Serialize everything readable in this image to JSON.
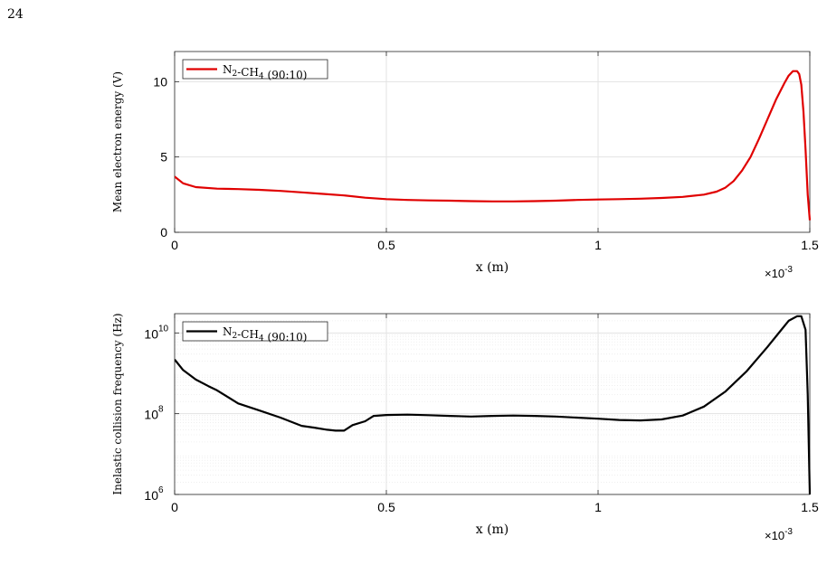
{
  "page_number": "24",
  "chart_data": [
    {
      "type": "line",
      "ylabel": "Mean electron energy (V)",
      "xlabel": "x (m)",
      "x_multiplier": "×10-3",
      "xlim": [
        0,
        1.5
      ],
      "ylim": [
        0,
        12
      ],
      "xticks": [
        0,
        0.5,
        1,
        1.5
      ],
      "xtick_labels": [
        "0",
        "0.5",
        "1",
        "1.5"
      ],
      "yticks": [
        0,
        5,
        10
      ],
      "ytick_labels": [
        "0",
        "5",
        "10"
      ],
      "yscale": "linear",
      "grid": true,
      "legend_position": "top-left",
      "series": [
        {
          "name": "N2-CH4 (90:10)",
          "color": "#e00000",
          "x": [
            0,
            0.02,
            0.05,
            0.1,
            0.15,
            0.2,
            0.25,
            0.3,
            0.35,
            0.4,
            0.45,
            0.5,
            0.55,
            0.6,
            0.65,
            0.7,
            0.75,
            0.8,
            0.85,
            0.9,
            0.95,
            1.0,
            1.05,
            1.1,
            1.15,
            1.2,
            1.25,
            1.28,
            1.3,
            1.32,
            1.34,
            1.36,
            1.38,
            1.4,
            1.42,
            1.44,
            1.45,
            1.46,
            1.47,
            1.475,
            1.48,
            1.485,
            1.49,
            1.495,
            1.5
          ],
          "y": [
            3.7,
            3.25,
            3.0,
            2.9,
            2.87,
            2.82,
            2.75,
            2.65,
            2.55,
            2.45,
            2.3,
            2.2,
            2.15,
            2.12,
            2.1,
            2.07,
            2.05,
            2.05,
            2.07,
            2.1,
            2.15,
            2.18,
            2.2,
            2.23,
            2.28,
            2.35,
            2.5,
            2.7,
            2.95,
            3.4,
            4.1,
            5.0,
            6.2,
            7.5,
            8.8,
            9.9,
            10.4,
            10.7,
            10.7,
            10.5,
            9.8,
            8.0,
            5.5,
            2.5,
            0.8
          ]
        }
      ]
    },
    {
      "type": "line",
      "ylabel": "Inelastic collision frequency (Hz)",
      "xlabel": "x (m)",
      "x_multiplier": "×10-3",
      "xlim": [
        0,
        1.5
      ],
      "ylim": [
        1000000,
        30000000000
      ],
      "xticks": [
        0,
        0.5,
        1,
        1.5
      ],
      "xtick_labels": [
        "0",
        "0.5",
        "1",
        "1.5"
      ],
      "yticks": [
        1000000,
        100000000,
        10000000000
      ],
      "ytick_labels": [
        "10",
        "10",
        "10"
      ],
      "ytick_exponents": [
        "6",
        "8",
        "10"
      ],
      "yscale": "log",
      "grid": true,
      "legend_position": "top-left",
      "series": [
        {
          "name": "N2-CH4 (90:10)",
          "color": "#000000",
          "x": [
            0,
            0.02,
            0.05,
            0.08,
            0.1,
            0.15,
            0.2,
            0.25,
            0.3,
            0.33,
            0.36,
            0.38,
            0.4,
            0.42,
            0.45,
            0.47,
            0.5,
            0.55,
            0.6,
            0.65,
            0.7,
            0.75,
            0.8,
            0.85,
            0.9,
            0.95,
            1.0,
            1.05,
            1.1,
            1.15,
            1.2,
            1.25,
            1.3,
            1.35,
            1.4,
            1.43,
            1.45,
            1.47,
            1.48,
            1.49,
            1.495,
            1.5
          ],
          "y": [
            2200000000,
            1200000000,
            700000000,
            480000000,
            380000000,
            180000000,
            120000000,
            80000000,
            50000000,
            45000000,
            40000000,
            38000000,
            38000000,
            52000000,
            65000000,
            88000000,
            93000000,
            95000000,
            92000000,
            88000000,
            85000000,
            88000000,
            90000000,
            88000000,
            85000000,
            80000000,
            75000000,
            70000000,
            68000000,
            72000000,
            90000000,
            150000000,
            350000000,
            1100000000,
            4500000000,
            11000000000,
            20000000000,
            26000000000,
            26000000000,
            12000000000,
            300000000,
            1000000
          ]
        }
      ]
    }
  ]
}
